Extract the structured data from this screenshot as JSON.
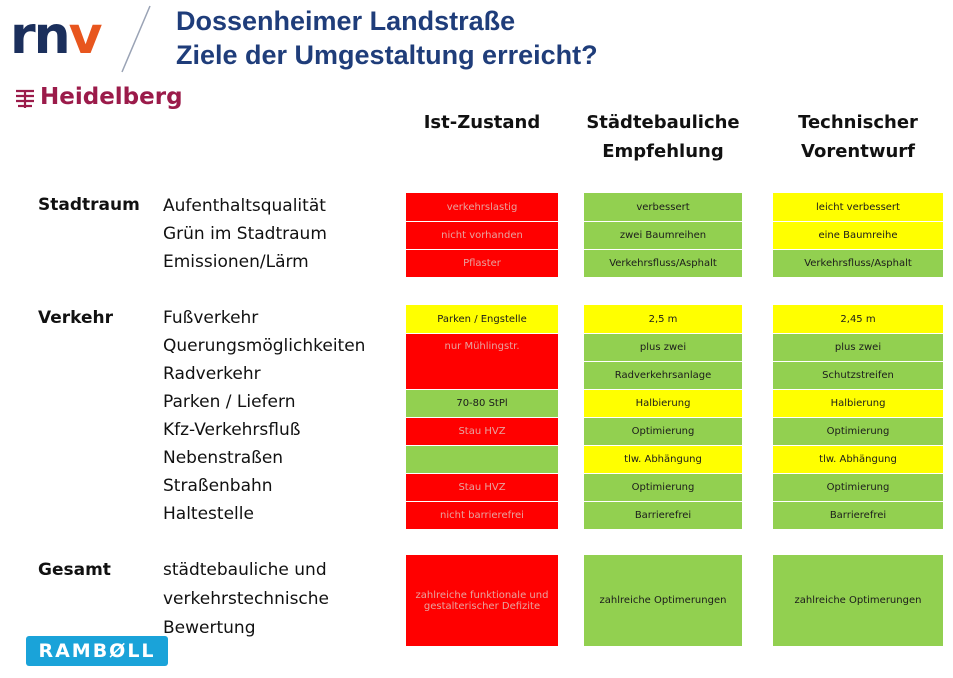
{
  "header": {
    "logo_text": "rnv",
    "title_line1": "Dossenheimer Landstraße",
    "title_line2": "Ziele der Umgestaltung erreicht?",
    "city_logo_text": "Heidelberg",
    "footer_logo_text": "RAMBØLL"
  },
  "columns": {
    "c1": "Ist-Zustand",
    "c2_line1": "Städtebauliche",
    "c2_line2": "Empfehlung",
    "c3_line1": "Technischer",
    "c3_line2": "Vorentwurf"
  },
  "sections": {
    "stadtraum": "Stadtraum",
    "verkehr": "Verkehr",
    "gesamt": "Gesamt"
  },
  "rows": {
    "aufenthalt": "Aufenthaltsqualität",
    "gruen": "Grün im Stadtraum",
    "emission": "Emissionen/Lärm",
    "fuss": "Fußverkehr",
    "querung": "Querungsmöglichkeiten",
    "rad": "Radverkehr",
    "parken": "Parken / Liefern",
    "kfz": "Kfz-Verkehrsfluß",
    "neben": "Nebenstraßen",
    "strab": "Straßenbahn",
    "halt": "Haltestelle",
    "gesamt1": "städtebauliche und",
    "gesamt2": "verkehrstechnische",
    "gesamt3": "Bewertung"
  },
  "cells": {
    "c1_aufenthalt": "verkehrslastig",
    "c1_gruen": "nicht vorhanden",
    "c1_emission": "Pflaster",
    "c1_fuss": "Parken / Engstelle",
    "c1_querung": "nur Mühlingstr.",
    "c1_parken": "70-80 StPl",
    "c1_kfz": "Stau HVZ",
    "c1_strab": "Stau HVZ",
    "c1_halt": "nicht barrierefrei",
    "c1_gesamt_line1": "zahlreiche funktionale und",
    "c1_gesamt_line2": "gestalterischer Defizite",
    "c2_aufenthalt": "verbessert",
    "c2_gruen": "zwei Baumreihen",
    "c2_emission": "Verkehrsfluss/Asphalt",
    "c2_fuss": "2,5 m",
    "c2_querung": "plus zwei",
    "c2_rad": "Radverkehrsanlage",
    "c2_parken": "Halbierung",
    "c2_kfz": "Optimierung",
    "c2_neben": "tlw. Abhängung",
    "c2_strab": "Optimierung",
    "c2_halt": "Barrierefrei",
    "c2_gesamt": "zahlreiche Optimerungen",
    "c3_aufenthalt": "leicht verbessert",
    "c3_gruen": "eine Baumreihe",
    "c3_emission": "Verkehrsfluss/Asphalt",
    "c3_fuss": "2,45 m",
    "c3_querung": "plus zwei",
    "c3_rad": "Schutzstreifen",
    "c3_parken": "Halbierung",
    "c3_kfz": "Optimierung",
    "c3_neben": "tlw. Abhängung",
    "c3_strab": "Optimierung",
    "c3_halt": "Barrierefrei",
    "c3_gesamt": "zahlreiche Optimerungen"
  },
  "colors": {
    "red": "#ff0000",
    "green": "#92d050",
    "yellow": "#ffff00",
    "title_blue": "#1f3d7a",
    "ramboll_blue": "#1aa3d9"
  }
}
